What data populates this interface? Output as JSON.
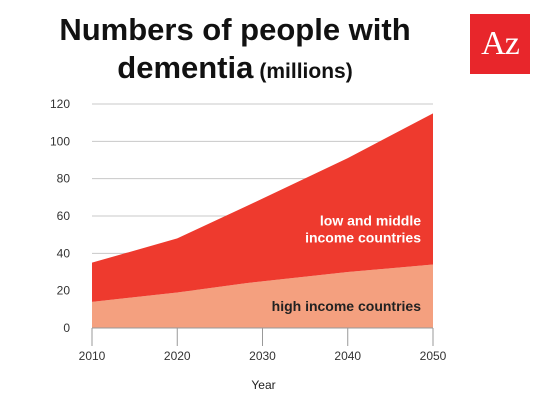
{
  "header": {
    "title_line1": "Numbers of people with",
    "title_main": "dementia",
    "title_sub": "(millions)"
  },
  "logo": {
    "text": "Az",
    "color": "#e8262b"
  },
  "chart_data": {
    "type": "area",
    "stacked": true,
    "xlabel": "Year",
    "ylabel": "",
    "x": [
      2010,
      2020,
      2028,
      2040,
      2050
    ],
    "xticks": [
      2010,
      2020,
      2030,
      2040,
      2050
    ],
    "yticks": [
      0,
      20,
      40,
      60,
      80,
      100,
      120
    ],
    "xlim": [
      2010,
      2050
    ],
    "ylim": [
      0,
      120
    ],
    "grid": true,
    "series": [
      {
        "name": "high income countries",
        "values": [
          14,
          19,
          24,
          30,
          34
        ],
        "color": "#f4a07f",
        "label_color": "#222222"
      },
      {
        "name": "low and middle income countries",
        "values": [
          21,
          29,
          41,
          61,
          81
        ],
        "color": "#ee3a2e",
        "label_color": "#ffffff",
        "label_lines": [
          "low and middle",
          "income countries"
        ]
      }
    ]
  }
}
